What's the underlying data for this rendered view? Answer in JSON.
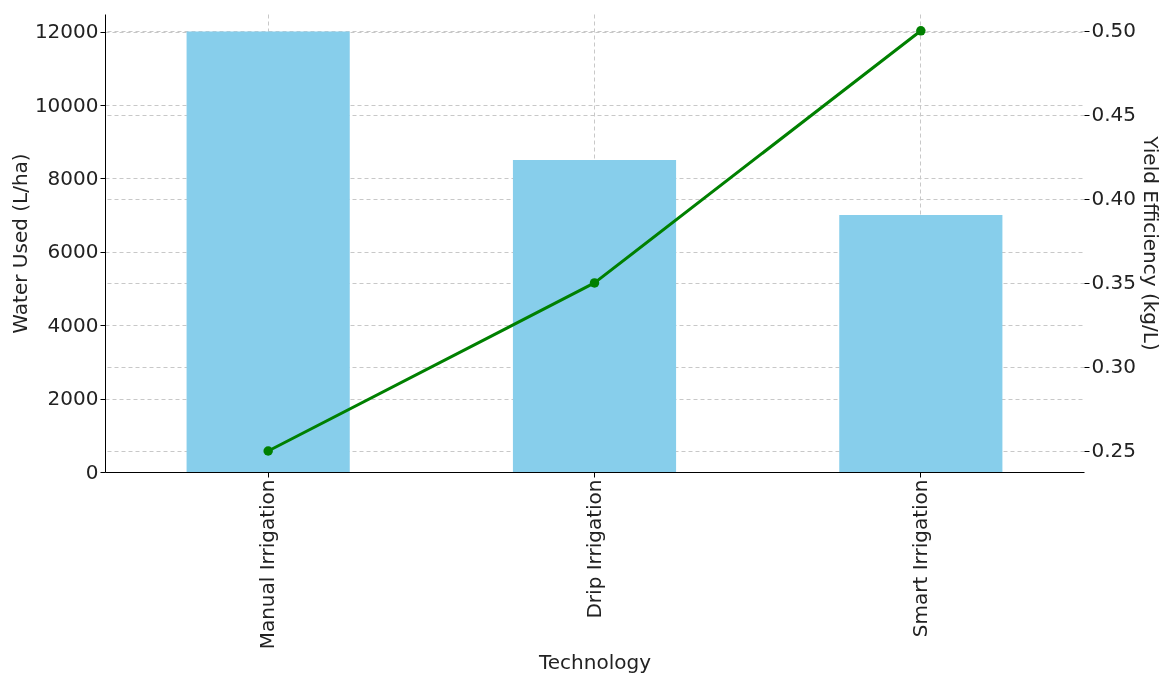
{
  "chart_data": {
    "type": "bar",
    "xlabel": "Technology",
    "ylabel": "Water Used (L/ha)",
    "y2label": "Yield Efficiency (kg/L)",
    "categories": [
      "Manual Irrigation",
      "Drip Irrigation",
      "Smart Irrigation"
    ],
    "series": [
      {
        "color": "#87ceeb",
        "values": [
          12000,
          8500,
          7000
        ]
      },
      {
        "type": "line",
        "axis": "y2",
        "color": "#008000",
        "values": [
          0.25,
          0.35,
          0.5
        ],
        "marker": "circle",
        "line_style": "solid"
      }
    ],
    "ylim": [
      0,
      12480
    ],
    "yticks": [
      0,
      2000,
      4000,
      6000,
      8000,
      10000,
      12000
    ],
    "y2lim": [
      0.2375,
      0.51
    ],
    "y2ticks": [
      0.25,
      {
        "value": 0.3,
        "label": "0.30"
      },
      0.35,
      {
        "value": 0.4,
        "label": "0.40"
      },
      0.45,
      {
        "value": 0.5,
        "label": "0.50"
      }
    ],
    "grid": true
  }
}
